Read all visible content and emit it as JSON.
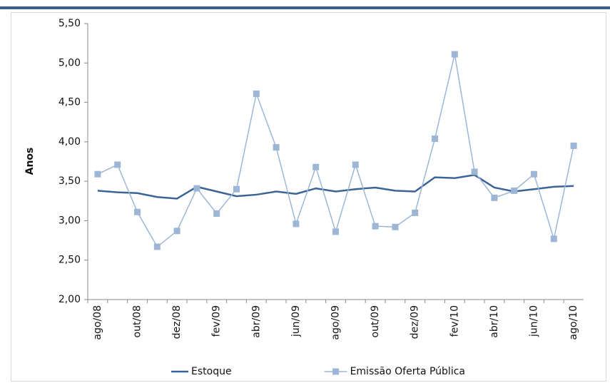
{
  "chart_data": {
    "type": "line",
    "ylabel": "Anos",
    "categories": [
      "ago/08",
      null,
      "out/08",
      null,
      "dez/08",
      null,
      "fev/09",
      null,
      "abr/09",
      null,
      "jun/09",
      null,
      "ago/09",
      null,
      "out/09",
      null,
      "dez/09",
      null,
      "fev/10",
      null,
      "abr/10",
      null,
      "jun/10",
      null,
      "ago/10"
    ],
    "series": [
      {
        "name": "Estoque",
        "color": "#3b6496",
        "marker": false,
        "values": [
          3.38,
          3.36,
          3.35,
          3.3,
          3.28,
          3.43,
          3.37,
          3.31,
          3.33,
          3.37,
          3.34,
          3.41,
          3.37,
          3.4,
          3.42,
          3.38,
          3.37,
          3.55,
          3.54,
          3.58,
          3.42,
          3.37,
          3.4,
          3.43,
          3.44
        ]
      },
      {
        "name": "Emissão Oferta Pública",
        "color": "#9db6d6",
        "marker": true,
        "values": [
          3.59,
          3.71,
          3.11,
          2.67,
          2.87,
          3.41,
          3.09,
          3.4,
          4.61,
          3.93,
          2.96,
          3.68,
          2.86,
          3.71,
          2.93,
          2.92,
          3.1,
          4.04,
          5.11,
          3.62,
          3.29,
          3.38,
          3.59,
          2.77,
          3.95
        ]
      }
    ],
    "ylim": [
      2.0,
      5.5
    ],
    "yticks": [
      {
        "value": 2.0,
        "label": "2,00"
      },
      {
        "value": 2.5,
        "label": "2,50"
      },
      {
        "value": 3.0,
        "label": "3,00"
      },
      {
        "value": 3.5,
        "label": "3,50"
      },
      {
        "value": 4.0,
        "label": "4,00"
      },
      {
        "value": 4.5,
        "label": "4,50"
      },
      {
        "value": 5.0,
        "label": "5,00"
      },
      {
        "value": 5.5,
        "label": "5,50"
      }
    ],
    "legend": "bottom"
  }
}
